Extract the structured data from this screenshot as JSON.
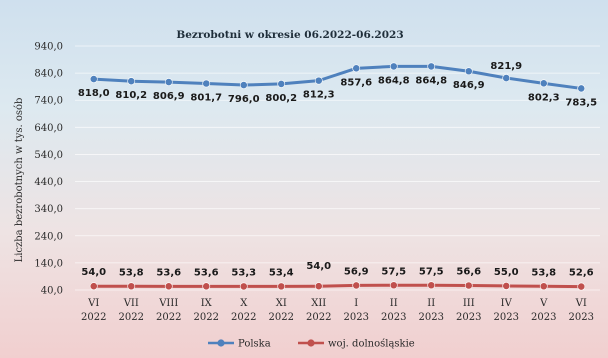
{
  "chart_data": {
    "type": "line",
    "title": "Bezrobotni w okresie 06.2022-06.2023",
    "ylabel": "Liczba bezrobotnych w tys. osób",
    "xlabel": "",
    "ylim": [
      40,
      940
    ],
    "yticks": [
      "40,0",
      "140,0",
      "240,0",
      "340,0",
      "440,0",
      "540,0",
      "640,0",
      "740,0",
      "840,0",
      "940,0"
    ],
    "grid": true,
    "legend_position": "bottom",
    "categories": [
      [
        "VI",
        "2022"
      ],
      [
        "VII",
        "2022"
      ],
      [
        "VIII",
        "2022"
      ],
      [
        "IX",
        "2022"
      ],
      [
        "X",
        "2022"
      ],
      [
        "XI",
        "2022"
      ],
      [
        "XII",
        "2022"
      ],
      [
        "I",
        "2023"
      ],
      [
        "II",
        "2023"
      ],
      [
        "II",
        "2023"
      ],
      [
        "III",
        "2023"
      ],
      [
        "IV",
        "2023"
      ],
      [
        "V",
        "2023"
      ],
      [
        "VI",
        "2023"
      ]
    ],
    "series": [
      {
        "name": "Polska",
        "color": "#4f81bd",
        "values": [
          818.0,
          810.2,
          806.9,
          801.7,
          796.0,
          800.2,
          812.3,
          857.6,
          864.8,
          864.8,
          846.9,
          821.9,
          802.3,
          783.5
        ],
        "labels": [
          "818,0",
          "810,2",
          "806,9",
          "801,7",
          "796,0",
          "800,2",
          "812,3",
          "857,6",
          "864,8",
          "864,8",
          "846,9",
          "821,9",
          "802,3",
          "783,5"
        ]
      },
      {
        "name": "woj. dolnośląskie",
        "color": "#c0504d",
        "values": [
          54.0,
          53.8,
          53.6,
          53.6,
          53.3,
          53.4,
          54.0,
          56.9,
          57.5,
          57.5,
          56.6,
          55.0,
          53.8,
          52.6
        ],
        "labels": [
          "54,0",
          "53,8",
          "53,6",
          "53,6",
          "53,3",
          "53,4",
          "54,0",
          "56,9",
          "57,5",
          "57,5",
          "56,6",
          "55,0",
          "53,8",
          "52,6"
        ]
      }
    ]
  }
}
